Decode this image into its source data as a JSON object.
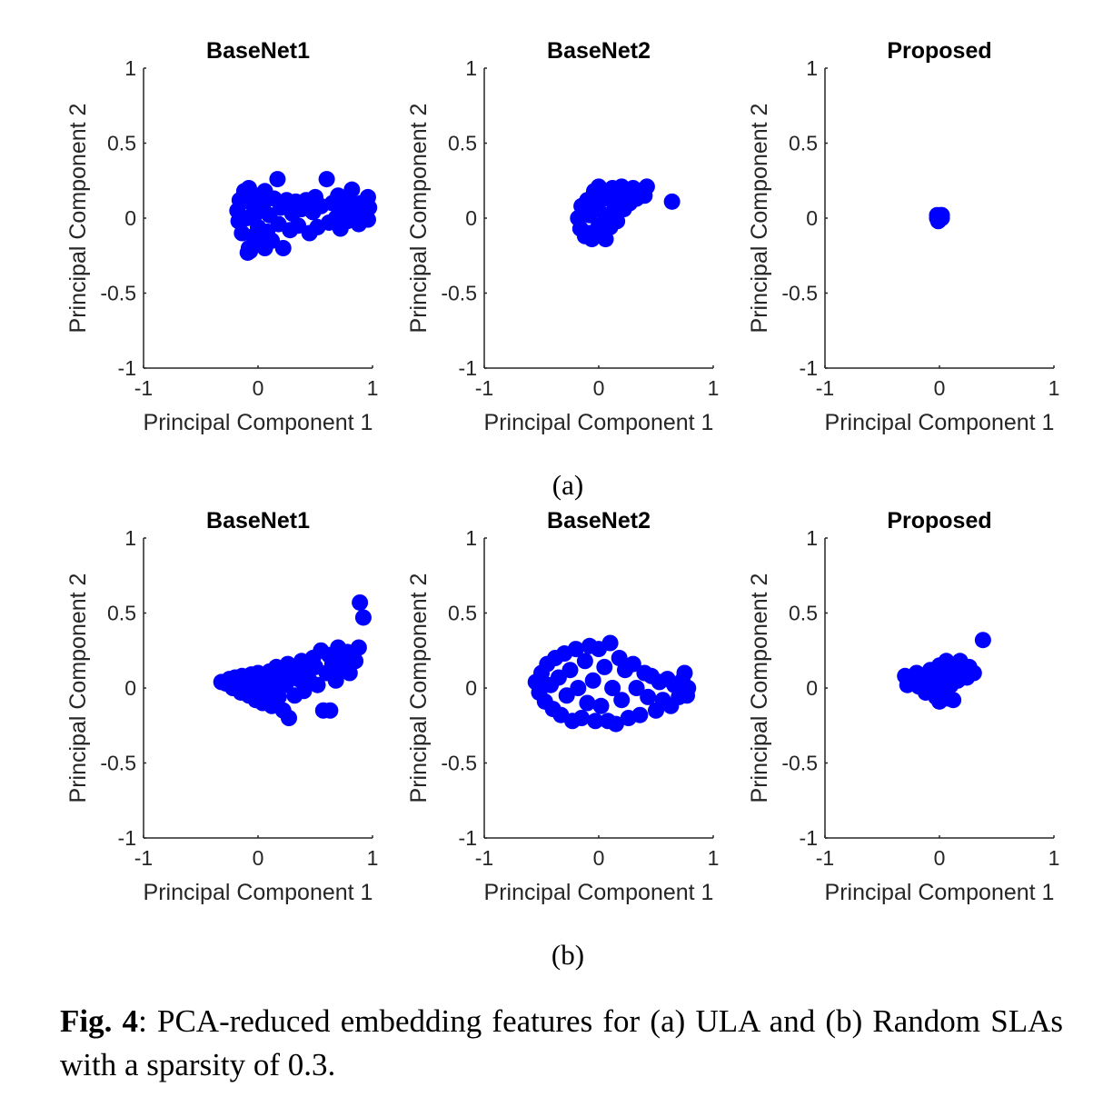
{
  "colors": {
    "marker": "#0000ff",
    "axis": "#262626"
  },
  "subfigure_labels": [
    "(a)",
    "(b)"
  ],
  "caption": {
    "prefix": "Fig. 4",
    "text": ": PCA-reduced embedding features for (a) ULA and (b) Random SLAs with a sparsity of 0.3."
  },
  "chart_data": [
    {
      "type": "scatter",
      "row": "(a)",
      "title": "BaseNet1",
      "xlabel": "Principal Component 1",
      "ylabel": "Principal Component 2",
      "xlim": [
        -1,
        1
      ],
      "ylim": [
        -1,
        1
      ],
      "xticks": [
        -1,
        0,
        1
      ],
      "yticks": [
        -1,
        -0.5,
        0,
        0.5,
        1
      ],
      "xtick_labels": [
        "-1",
        "0",
        "1"
      ],
      "ytick_labels": [
        "-1",
        "-0.5",
        "0",
        "0.5",
        "1"
      ],
      "grid": false,
      "points": [
        [
          -0.18,
          0.05
        ],
        [
          -0.17,
          -0.02
        ],
        [
          -0.16,
          0.12
        ],
        [
          -0.14,
          -0.1
        ],
        [
          -0.12,
          0.18
        ],
        [
          -0.1,
          0.0
        ],
        [
          -0.08,
          -0.2
        ],
        [
          -0.08,
          0.2
        ],
        [
          -0.06,
          0.1
        ],
        [
          -0.04,
          -0.12
        ],
        [
          -0.02,
          0.03
        ],
        [
          0.0,
          0.15
        ],
        [
          0.0,
          -0.06
        ],
        [
          0.02,
          -0.16
        ],
        [
          0.04,
          0.08
        ],
        [
          0.06,
          0.18
        ],
        [
          0.08,
          -0.09
        ],
        [
          0.1,
          0.02
        ],
        [
          0.12,
          -0.15
        ],
        [
          0.14,
          0.13
        ],
        [
          0.17,
          0.26
        ],
        [
          0.18,
          -0.04
        ],
        [
          0.2,
          0.07
        ],
        [
          0.22,
          -0.2
        ],
        [
          0.25,
          0.12
        ],
        [
          0.28,
          -0.08
        ],
        [
          0.3,
          0.03
        ],
        [
          0.33,
          0.11
        ],
        [
          0.35,
          -0.05
        ],
        [
          0.38,
          0.06
        ],
        [
          0.42,
          0.12
        ],
        [
          0.45,
          -0.1
        ],
        [
          0.48,
          0.04
        ],
        [
          0.5,
          0.14
        ],
        [
          0.52,
          -0.06
        ],
        [
          0.55,
          0.08
        ],
        [
          0.6,
          0.26
        ],
        [
          0.62,
          -0.03
        ],
        [
          0.65,
          0.1
        ],
        [
          0.68,
          0.0
        ],
        [
          0.7,
          0.15
        ],
        [
          0.72,
          -0.07
        ],
        [
          0.75,
          0.06
        ],
        [
          0.78,
          -0.02
        ],
        [
          0.8,
          0.12
        ],
        [
          0.82,
          0.19
        ],
        [
          0.85,
          0.04
        ],
        [
          0.88,
          -0.04
        ],
        [
          0.9,
          0.1
        ],
        [
          0.94,
          0.02
        ],
        [
          0.96,
          0.14
        ],
        [
          0.97,
          0.07
        ],
        [
          0.96,
          -0.01
        ],
        [
          -0.09,
          -0.23
        ],
        [
          -0.07,
          -0.22
        ],
        [
          0.06,
          -0.2
        ]
      ]
    },
    {
      "type": "scatter",
      "row": "(a)",
      "title": "BaseNet2",
      "xlabel": "Principal Component 1",
      "ylabel": "Principal Component 2",
      "xlim": [
        -1,
        1
      ],
      "ylim": [
        -1,
        1
      ],
      "xticks": [
        -1,
        0,
        1
      ],
      "yticks": [
        -1,
        -0.5,
        0,
        0.5,
        1
      ],
      "xtick_labels": [
        "-1",
        "0",
        "1"
      ],
      "ytick_labels": [
        "-1",
        "-0.5",
        "0",
        "0.5",
        "1"
      ],
      "grid": false,
      "points": [
        [
          -0.18,
          0.0
        ],
        [
          -0.16,
          -0.07
        ],
        [
          -0.15,
          0.08
        ],
        [
          -0.12,
          -0.12
        ],
        [
          -0.1,
          0.12
        ],
        [
          -0.08,
          0.02
        ],
        [
          -0.06,
          -0.14
        ],
        [
          -0.04,
          0.18
        ],
        [
          -0.02,
          0.06
        ],
        [
          0.0,
          -0.05
        ],
        [
          0.0,
          0.21
        ],
        [
          0.02,
          0.12
        ],
        [
          0.04,
          -0.1
        ],
        [
          0.06,
          0.02
        ],
        [
          0.08,
          0.15
        ],
        [
          0.1,
          -0.06
        ],
        [
          0.12,
          0.2
        ],
        [
          0.14,
          0.08
        ],
        [
          0.16,
          -0.02
        ],
        [
          0.18,
          0.12
        ],
        [
          0.2,
          0.21
        ],
        [
          0.22,
          0.06
        ],
        [
          0.24,
          0.16
        ],
        [
          0.27,
          0.1
        ],
        [
          0.3,
          0.2
        ],
        [
          0.33,
          0.13
        ],
        [
          0.36,
          0.18
        ],
        [
          0.4,
          0.15
        ],
        [
          0.42,
          0.21
        ],
        [
          0.64,
          0.11
        ],
        [
          -0.08,
          -0.1
        ],
        [
          0.06,
          -0.14
        ]
      ]
    },
    {
      "type": "scatter",
      "row": "(a)",
      "title": "Proposed",
      "xlabel": "Principal Component 1",
      "ylabel": "Principal Component 2",
      "xlim": [
        -1,
        1
      ],
      "ylim": [
        -1,
        1
      ],
      "xticks": [
        -1,
        0,
        1
      ],
      "yticks": [
        -1,
        -0.5,
        0,
        0.5,
        1
      ],
      "xtick_labels": [
        "-1",
        "0",
        "1"
      ],
      "ytick_labels": [
        "-1",
        "-0.5",
        "0",
        "0.5",
        "1"
      ],
      "grid": false,
      "points": [
        [
          -0.02,
          0.0
        ],
        [
          0.0,
          0.01
        ],
        [
          0.02,
          0.0
        ],
        [
          0.0,
          -0.01
        ],
        [
          0.01,
          0.02
        ],
        [
          -0.01,
          -0.02
        ],
        [
          0.02,
          0.02
        ],
        [
          -0.02,
          0.02
        ]
      ]
    },
    {
      "type": "scatter",
      "row": "(b)",
      "title": "BaseNet1",
      "xlabel": "Principal Component 1",
      "ylabel": "Principal Component 2",
      "xlim": [
        -1,
        1
      ],
      "ylim": [
        -1,
        1
      ],
      "xticks": [
        -1,
        0,
        1
      ],
      "yticks": [
        -1,
        -0.5,
        0,
        0.5,
        1
      ],
      "xtick_labels": [
        "-1",
        "0",
        "1"
      ],
      "ytick_labels": [
        "-1",
        "-0.5",
        "0",
        "0.5",
        "1"
      ],
      "grid": false,
      "points": [
        [
          -0.32,
          0.04
        ],
        [
          -0.28,
          0.03
        ],
        [
          -0.25,
          0.06
        ],
        [
          -0.22,
          0.0
        ],
        [
          -0.2,
          0.07
        ],
        [
          -0.18,
          0.02
        ],
        [
          -0.15,
          -0.03
        ],
        [
          -0.14,
          0.08
        ],
        [
          -0.1,
          0.04
        ],
        [
          -0.08,
          -0.05
        ],
        [
          -0.06,
          0.09
        ],
        [
          -0.04,
          0.0
        ],
        [
          -0.02,
          -0.08
        ],
        [
          0.0,
          0.1
        ],
        [
          0.02,
          0.03
        ],
        [
          0.04,
          -0.1
        ],
        [
          0.06,
          0.06
        ],
        [
          0.08,
          -0.03
        ],
        [
          0.1,
          0.11
        ],
        [
          0.12,
          -0.12
        ],
        [
          0.14,
          0.04
        ],
        [
          0.16,
          0.14
        ],
        [
          0.18,
          -0.06
        ],
        [
          0.2,
          0.08
        ],
        [
          0.22,
          -0.15
        ],
        [
          0.24,
          0.02
        ],
        [
          0.26,
          0.16
        ],
        [
          0.27,
          -0.2
        ],
        [
          0.3,
          0.1
        ],
        [
          0.32,
          -0.05
        ],
        [
          0.35,
          0.06
        ],
        [
          0.38,
          0.18
        ],
        [
          0.4,
          -0.02
        ],
        [
          0.42,
          0.12
        ],
        [
          0.45,
          0.05
        ],
        [
          0.48,
          0.2
        ],
        [
          0.5,
          0.14
        ],
        [
          0.52,
          0.02
        ],
        [
          0.55,
          0.25
        ],
        [
          0.57,
          -0.15
        ],
        [
          0.6,
          0.1
        ],
        [
          0.62,
          0.22
        ],
        [
          0.63,
          -0.15
        ],
        [
          0.65,
          0.16
        ],
        [
          0.68,
          0.05
        ],
        [
          0.7,
          0.27
        ],
        [
          0.72,
          0.13
        ],
        [
          0.75,
          0.2
        ],
        [
          0.78,
          0.24
        ],
        [
          0.8,
          0.1
        ],
        [
          0.85,
          0.18
        ],
        [
          0.88,
          0.27
        ],
        [
          0.89,
          0.57
        ],
        [
          0.92,
          0.47
        ]
      ]
    },
    {
      "type": "scatter",
      "row": "(b)",
      "title": "BaseNet2",
      "xlabel": "Principal Component 1",
      "ylabel": "Principal Component 2",
      "xlim": [
        -1,
        1
      ],
      "ylim": [
        -1,
        1
      ],
      "xticks": [
        -1,
        0,
        1
      ],
      "yticks": [
        -1,
        -0.5,
        0,
        0.5,
        1
      ],
      "xtick_labels": [
        "-1",
        "0",
        "1"
      ],
      "ytick_labels": [
        "-1",
        "-0.5",
        "0",
        "0.5",
        "1"
      ],
      "grid": false,
      "points": [
        [
          -0.55,
          0.04
        ],
        [
          -0.52,
          -0.03
        ],
        [
          -0.5,
          0.1
        ],
        [
          -0.47,
          -0.09
        ],
        [
          -0.45,
          0.16
        ],
        [
          -0.42,
          0.02
        ],
        [
          -0.4,
          -0.14
        ],
        [
          -0.38,
          0.2
        ],
        [
          -0.35,
          0.07
        ],
        [
          -0.33,
          -0.18
        ],
        [
          -0.3,
          0.23
        ],
        [
          -0.28,
          -0.05
        ],
        [
          -0.25,
          0.12
        ],
        [
          -0.23,
          -0.22
        ],
        [
          -0.2,
          0.26
        ],
        [
          -0.18,
          0.0
        ],
        [
          -0.15,
          -0.2
        ],
        [
          -0.12,
          0.18
        ],
        [
          -0.1,
          -0.1
        ],
        [
          -0.08,
          0.28
        ],
        [
          -0.05,
          0.05
        ],
        [
          -0.03,
          -0.22
        ],
        [
          0.0,
          0.26
        ],
        [
          0.02,
          -0.12
        ],
        [
          0.05,
          0.14
        ],
        [
          0.08,
          -0.22
        ],
        [
          0.1,
          0.3
        ],
        [
          0.12,
          0.0
        ],
        [
          0.15,
          -0.24
        ],
        [
          0.18,
          0.2
        ],
        [
          0.2,
          -0.08
        ],
        [
          0.23,
          0.12
        ],
        [
          0.26,
          -0.2
        ],
        [
          0.3,
          0.16
        ],
        [
          0.33,
          0.0
        ],
        [
          0.36,
          -0.18
        ],
        [
          0.4,
          0.1
        ],
        [
          0.43,
          -0.06
        ],
        [
          0.46,
          0.08
        ],
        [
          0.5,
          -0.15
        ],
        [
          0.53,
          0.04
        ],
        [
          0.56,
          -0.08
        ],
        [
          0.6,
          0.06
        ],
        [
          0.63,
          -0.12
        ],
        [
          0.66,
          0.02
        ],
        [
          0.7,
          -0.06
        ],
        [
          0.73,
          0.05
        ],
        [
          0.75,
          0.1
        ],
        [
          0.77,
          -0.05
        ],
        [
          0.78,
          0.0
        ]
      ]
    },
    {
      "type": "scatter",
      "row": "(b)",
      "title": "Proposed",
      "xlabel": "Principal Component 1",
      "ylabel": "Principal Component 2",
      "xlim": [
        -1,
        1
      ],
      "ylim": [
        -1,
        1
      ],
      "xticks": [
        -1,
        0,
        1
      ],
      "yticks": [
        -1,
        -0.5,
        0,
        0.5,
        1
      ],
      "xtick_labels": [
        "-1",
        "0",
        "1"
      ],
      "ytick_labels": [
        "-1",
        "-0.5",
        "0",
        "0.5",
        "1"
      ],
      "grid": false,
      "points": [
        [
          -0.3,
          0.08
        ],
        [
          -0.28,
          0.02
        ],
        [
          -0.24,
          0.06
        ],
        [
          -0.2,
          0.1
        ],
        [
          -0.18,
          0.01
        ],
        [
          -0.15,
          0.05
        ],
        [
          -0.12,
          -0.03
        ],
        [
          -0.08,
          0.12
        ],
        [
          -0.05,
          0.03
        ],
        [
          -0.03,
          -0.06
        ],
        [
          0.0,
          0.15
        ],
        [
          0.02,
          0.07
        ],
        [
          0.04,
          -0.02
        ],
        [
          0.06,
          0.18
        ],
        [
          0.08,
          0.1
        ],
        [
          0.1,
          0.02
        ],
        [
          0.12,
          -0.08
        ],
        [
          0.14,
          0.12
        ],
        [
          0.16,
          0.05
        ],
        [
          0.18,
          0.18
        ],
        [
          0.2,
          0.09
        ],
        [
          0.24,
          0.07
        ],
        [
          0.26,
          0.14
        ],
        [
          0.3,
          0.1
        ],
        [
          0.38,
          0.32
        ],
        [
          0.0,
          -0.09
        ],
        [
          0.08,
          -0.07
        ]
      ]
    }
  ]
}
